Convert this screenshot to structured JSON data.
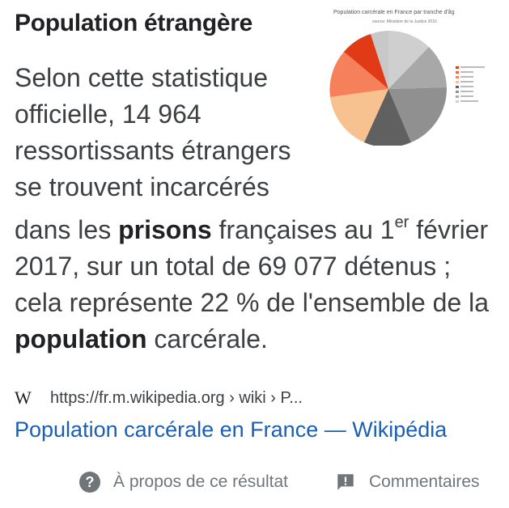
{
  "heading": "Population étrangère",
  "snippet": {
    "top_text": "Selon cette statistique officielle, 14 964 ressortissants étrangers se trouvent incarcérés",
    "line1_pre": "dans les ",
    "line1_bold": "prisons",
    "line1_post": " françaises au 1",
    "line1_sup": "er",
    "line2": " février 2017, sur un total de 69 077 détenus ; cela représente 22 % de l'ensemble de la ",
    "line2_bold": "population",
    "line2_post": " carcérale."
  },
  "thumbnail": {
    "title": "Population carcérale en France par tranche d'âg",
    "subtitle": "source: Ministère de la Justice 2016",
    "colors": [
      "#e03a16",
      "#f5805a",
      "#f7c190",
      "#606060",
      "#9a9a9a",
      "#b8b8b8",
      "#cfcfcf"
    ]
  },
  "source": {
    "icon": "wikipedia-w-icon",
    "icon_text": "W",
    "url": "https://fr.m.wikipedia.org › wiki › P...",
    "title": "Population carcérale en France — Wikipédia"
  },
  "footer": {
    "about_label": "À propos de ce résultat",
    "feedback_label": "Commentaires"
  }
}
